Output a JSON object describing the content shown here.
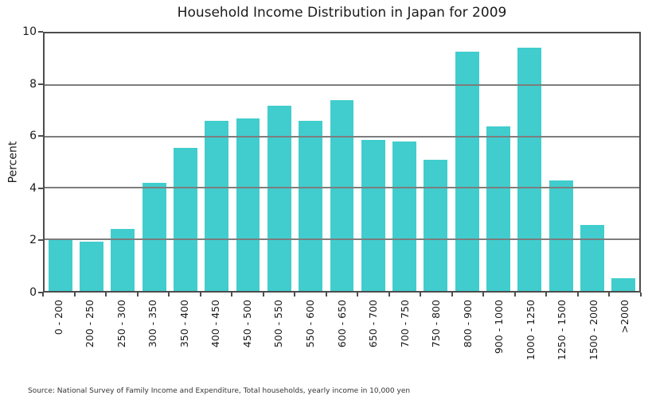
{
  "source_note": "Source: National Survey of Family Income and Expenditure, Total households, yearly income in 10,000 yen",
  "chart_data": {
    "type": "bar",
    "title": "Household Income Distribution in Japan for 2009",
    "xlabel": "",
    "ylabel": "Percent",
    "ylim": [
      0,
      10
    ],
    "yticks": [
      0,
      2,
      4,
      6,
      8,
      10
    ],
    "grid": true,
    "legend_position": "none",
    "bar_color": "#41cdcd",
    "grid_color": "#7d7d7d",
    "axis_color": "#4d4d4d",
    "text_color": "#1a1a1a",
    "categories": [
      "0 - 200",
      "200 - 250",
      "250 - 300",
      "300 - 350",
      "350 - 400",
      "400 - 450",
      "450 - 500",
      "500 - 550",
      "550 - 600",
      "600 - 650",
      "650 - 700",
      "700 - 750",
      "750 - 800",
      "800 - 900",
      "900 - 1000",
      "1000 - 1250",
      "1250 - 1500",
      "1500 - 2000",
      ">2000"
    ],
    "values": [
      2.0,
      1.9,
      2.4,
      4.2,
      5.55,
      6.6,
      6.7,
      7.2,
      6.6,
      7.4,
      5.85,
      5.8,
      5.1,
      9.3,
      6.4,
      9.45,
      4.3,
      2.55,
      0.5
    ]
  }
}
